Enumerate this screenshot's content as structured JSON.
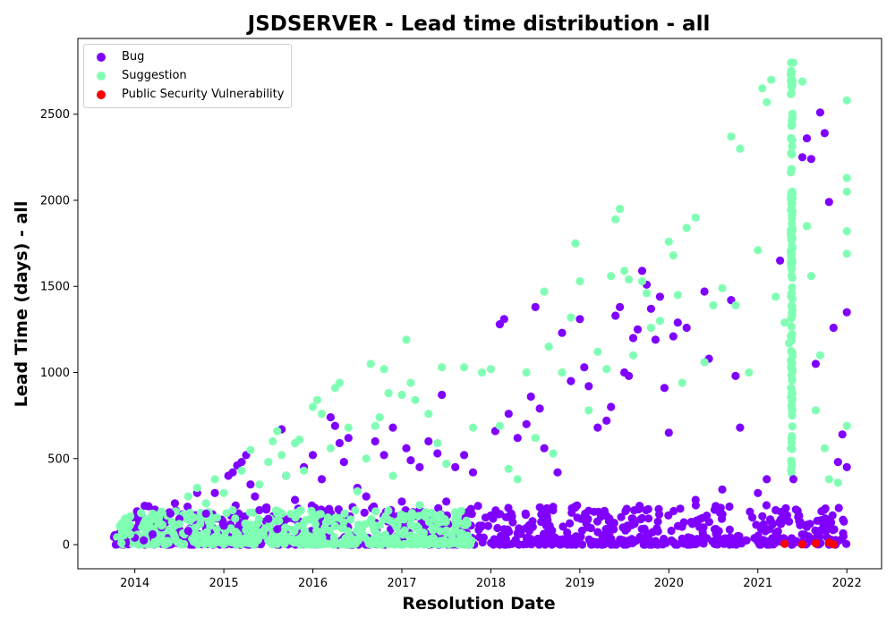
{
  "chart_data": {
    "type": "scatter",
    "title": "JSDSERVER - Lead time distribution - all",
    "xlabel": "Resolution Date",
    "ylabel": "Lead Time (days) - all",
    "xlim": [
      2013.36,
      2022.39
    ],
    "ylim": [
      -140,
      2940
    ],
    "xticks": [
      2014,
      2015,
      2016,
      2017,
      2018,
      2019,
      2020,
      2021,
      2022
    ],
    "yticks": [
      0,
      500,
      1000,
      1500,
      2000,
      2500
    ],
    "legend_position": "upper-left",
    "series": [
      {
        "name": "Bug",
        "color": "#8000ff",
        "points": [
          [
            2013.8,
            2
          ],
          [
            2013.9,
            10
          ],
          [
            2014.0,
            40
          ],
          [
            2014.1,
            25
          ],
          [
            2014.2,
            60
          ],
          [
            2014.3,
            100
          ],
          [
            2014.4,
            180
          ],
          [
            2014.45,
            240
          ],
          [
            2014.5,
            150
          ],
          [
            2014.6,
            80
          ],
          [
            2014.7,
            300
          ],
          [
            2014.8,
            180
          ],
          [
            2014.9,
            300
          ],
          [
            2015.0,
            110
          ],
          [
            2015.05,
            400
          ],
          [
            2015.1,
            420
          ],
          [
            2015.15,
            460
          ],
          [
            2015.2,
            480
          ],
          [
            2015.25,
            520
          ],
          [
            2015.3,
            350
          ],
          [
            2015.35,
            280
          ],
          [
            2015.4,
            200
          ],
          [
            2015.5,
            150
          ],
          [
            2015.6,
            90
          ],
          [
            2015.65,
            670
          ],
          [
            2015.7,
            400
          ],
          [
            2015.8,
            260
          ],
          [
            2015.9,
            450
          ],
          [
            2016.0,
            520
          ],
          [
            2016.1,
            380
          ],
          [
            2016.2,
            740
          ],
          [
            2016.25,
            690
          ],
          [
            2016.3,
            590
          ],
          [
            2016.35,
            480
          ],
          [
            2016.4,
            620
          ],
          [
            2016.5,
            330
          ],
          [
            2016.6,
            280
          ],
          [
            2016.7,
            600
          ],
          [
            2016.8,
            520
          ],
          [
            2016.9,
            680
          ],
          [
            2017.0,
            250
          ],
          [
            2017.05,
            560
          ],
          [
            2017.1,
            490
          ],
          [
            2017.2,
            450
          ],
          [
            2017.3,
            600
          ],
          [
            2017.4,
            530
          ],
          [
            2017.45,
            870
          ],
          [
            2017.5,
            250
          ],
          [
            2017.6,
            450
          ],
          [
            2017.7,
            520
          ],
          [
            2017.8,
            420
          ],
          [
            2017.9,
            110
          ],
          [
            2018.0,
            170
          ],
          [
            2018.05,
            660
          ],
          [
            2018.1,
            1280
          ],
          [
            2018.15,
            1310
          ],
          [
            2018.2,
            760
          ],
          [
            2018.3,
            620
          ],
          [
            2018.4,
            700
          ],
          [
            2018.45,
            860
          ],
          [
            2018.5,
            1380
          ],
          [
            2018.55,
            790
          ],
          [
            2018.6,
            560
          ],
          [
            2018.7,
            220
          ],
          [
            2018.75,
            420
          ],
          [
            2018.8,
            1230
          ],
          [
            2018.9,
            950
          ],
          [
            2019.0,
            1310
          ],
          [
            2019.05,
            1030
          ],
          [
            2019.1,
            920
          ],
          [
            2019.2,
            680
          ],
          [
            2019.3,
            720
          ],
          [
            2019.35,
            800
          ],
          [
            2019.4,
            1330
          ],
          [
            2019.45,
            1380
          ],
          [
            2019.5,
            1000
          ],
          [
            2019.55,
            980
          ],
          [
            2019.6,
            1200
          ],
          [
            2019.65,
            1250
          ],
          [
            2019.7,
            1590
          ],
          [
            2019.75,
            1510
          ],
          [
            2019.8,
            1370
          ],
          [
            2019.85,
            1190
          ],
          [
            2019.9,
            1440
          ],
          [
            2019.95,
            910
          ],
          [
            2020.0,
            650
          ],
          [
            2020.05,
            1210
          ],
          [
            2020.1,
            1290
          ],
          [
            2020.2,
            1260
          ],
          [
            2020.3,
            260
          ],
          [
            2020.4,
            1470
          ],
          [
            2020.45,
            1080
          ],
          [
            2020.6,
            320
          ],
          [
            2020.7,
            1420
          ],
          [
            2020.75,
            980
          ],
          [
            2020.8,
            680
          ],
          [
            2021.0,
            300
          ],
          [
            2021.1,
            380
          ],
          [
            2021.2,
            200
          ],
          [
            2021.25,
            1650
          ],
          [
            2021.3,
            180
          ],
          [
            2021.4,
            380
          ],
          [
            2021.5,
            2250
          ],
          [
            2021.55,
            2360
          ],
          [
            2021.6,
            2240
          ],
          [
            2021.65,
            1050
          ],
          [
            2021.7,
            2510
          ],
          [
            2021.75,
            2390
          ],
          [
            2021.8,
            1990
          ],
          [
            2021.85,
            1260
          ],
          [
            2021.9,
            480
          ],
          [
            2021.95,
            640
          ],
          [
            2022.0,
            1350
          ],
          [
            2022.0,
            450
          ]
        ]
      },
      {
        "name": "Suggestion",
        "color": "#80ffb4",
        "points": [
          [
            2013.85,
            10
          ],
          [
            2013.95,
            60
          ],
          [
            2014.1,
            120
          ],
          [
            2014.2,
            180
          ],
          [
            2014.3,
            110
          ],
          [
            2014.5,
            120
          ],
          [
            2014.6,
            280
          ],
          [
            2014.7,
            330
          ],
          [
            2014.8,
            240
          ],
          [
            2014.9,
            380
          ],
          [
            2015.0,
            300
          ],
          [
            2015.1,
            200
          ],
          [
            2015.2,
            430
          ],
          [
            2015.3,
            550
          ],
          [
            2015.4,
            350
          ],
          [
            2015.5,
            480
          ],
          [
            2015.55,
            600
          ],
          [
            2015.6,
            660
          ],
          [
            2015.65,
            520
          ],
          [
            2015.7,
            400
          ],
          [
            2015.8,
            590
          ],
          [
            2015.85,
            610
          ],
          [
            2015.9,
            430
          ],
          [
            2016.0,
            800
          ],
          [
            2016.05,
            840
          ],
          [
            2016.1,
            760
          ],
          [
            2016.2,
            560
          ],
          [
            2016.25,
            910
          ],
          [
            2016.3,
            940
          ],
          [
            2016.4,
            680
          ],
          [
            2016.5,
            310
          ],
          [
            2016.6,
            500
          ],
          [
            2016.65,
            1050
          ],
          [
            2016.7,
            690
          ],
          [
            2016.75,
            740
          ],
          [
            2016.8,
            1020
          ],
          [
            2016.85,
            880
          ],
          [
            2016.9,
            400
          ],
          [
            2017.0,
            870
          ],
          [
            2017.05,
            1190
          ],
          [
            2017.1,
            940
          ],
          [
            2017.15,
            840
          ],
          [
            2017.2,
            230
          ],
          [
            2017.3,
            760
          ],
          [
            2017.4,
            590
          ],
          [
            2017.45,
            1030
          ],
          [
            2017.5,
            470
          ],
          [
            2017.6,
            150
          ],
          [
            2017.7,
            1030
          ],
          [
            2017.8,
            680
          ],
          [
            2017.9,
            1000
          ],
          [
            2018.0,
            1020
          ],
          [
            2018.1,
            690
          ],
          [
            2018.2,
            440
          ],
          [
            2018.3,
            380
          ],
          [
            2018.4,
            1000
          ],
          [
            2018.5,
            620
          ],
          [
            2018.6,
            1470
          ],
          [
            2018.65,
            1150
          ],
          [
            2018.7,
            530
          ],
          [
            2018.8,
            1000
          ],
          [
            2018.9,
            1320
          ],
          [
            2018.95,
            1750
          ],
          [
            2019.0,
            1530
          ],
          [
            2019.1,
            780
          ],
          [
            2019.2,
            1120
          ],
          [
            2019.3,
            1020
          ],
          [
            2019.35,
            1560
          ],
          [
            2019.4,
            1890
          ],
          [
            2019.45,
            1950
          ],
          [
            2019.5,
            1590
          ],
          [
            2019.55,
            1540
          ],
          [
            2019.6,
            1100
          ],
          [
            2019.7,
            1530
          ],
          [
            2019.75,
            1460
          ],
          [
            2019.8,
            1260
          ],
          [
            2019.9,
            1300
          ],
          [
            2020.0,
            1760
          ],
          [
            2020.05,
            1680
          ],
          [
            2020.1,
            1450
          ],
          [
            2020.15,
            940
          ],
          [
            2020.2,
            1840
          ],
          [
            2020.3,
            1900
          ],
          [
            2020.4,
            1060
          ],
          [
            2020.5,
            1390
          ],
          [
            2020.6,
            1490
          ],
          [
            2020.7,
            2370
          ],
          [
            2020.75,
            1390
          ],
          [
            2020.8,
            2300
          ],
          [
            2020.9,
            1000
          ],
          [
            2021.0,
            1710
          ],
          [
            2021.05,
            2650
          ],
          [
            2021.1,
            2570
          ],
          [
            2021.15,
            2700
          ],
          [
            2021.2,
            1440
          ],
          [
            2021.3,
            1290
          ],
          [
            2021.35,
            1170
          ],
          [
            2021.4,
            2800
          ],
          [
            2021.5,
            2690
          ],
          [
            2021.55,
            1850
          ],
          [
            2021.6,
            1560
          ],
          [
            2021.65,
            780
          ],
          [
            2021.7,
            1100
          ],
          [
            2021.75,
            560
          ],
          [
            2021.8,
            380
          ],
          [
            2021.9,
            360
          ],
          [
            2022.0,
            2580
          ],
          [
            2022.0,
            2130
          ],
          [
            2022.0,
            2050
          ],
          [
            2022.0,
            1820
          ],
          [
            2022.0,
            1690
          ],
          [
            2022.0,
            690
          ]
        ]
      },
      {
        "name": "Public Security Vulnerability",
        "color": "#ff0000",
        "points": [
          [
            2021.3,
            5
          ],
          [
            2021.5,
            3
          ],
          [
            2021.65,
            8
          ],
          [
            2021.8,
            12
          ],
          [
            2021.85,
            2
          ]
        ]
      }
    ]
  }
}
